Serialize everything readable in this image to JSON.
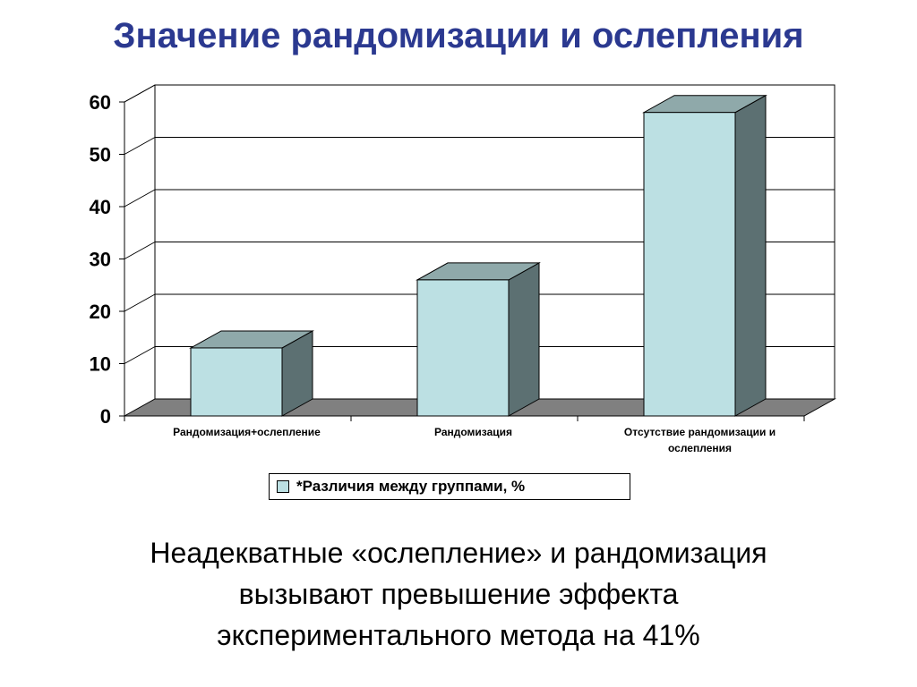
{
  "slide": {
    "title": "Значение рандомизации и ослепления",
    "caption_lines": [
      "Неадекватные «ослепление» и рандомизация",
      "вызывают превышение эффекта",
      "экспериментального метода на 41%"
    ]
  },
  "chart_data": {
    "type": "bar",
    "style": "3d-column",
    "categories": [
      [
        "Рандомизация+ослепление"
      ],
      [
        "Рандомизация"
      ],
      [
        "Отсутствие рандомизации и",
        "ослепления"
      ]
    ],
    "series": [
      {
        "name": "*Различия между группами, %",
        "values": [
          13,
          26,
          58
        ]
      }
    ],
    "yticks": [
      0,
      10,
      20,
      30,
      40,
      50,
      60
    ],
    "ylim": [
      0,
      60
    ],
    "grid": true,
    "legend_position": "bottom",
    "colors": {
      "bar_front": "#bce0e3",
      "bar_top": "#8fa9aa",
      "bar_side": "#5c7072",
      "floor": "#808080",
      "title": "#2b3990"
    }
  }
}
